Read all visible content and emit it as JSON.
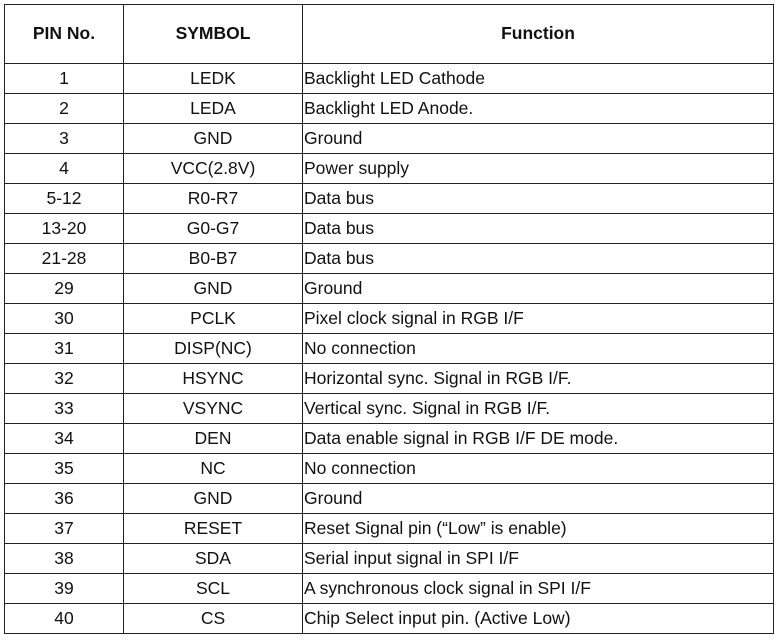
{
  "table": {
    "headers": [
      "PIN No.",
      "SYMBOL",
      "Function"
    ],
    "rows": [
      {
        "pin": "1",
        "symbol": "LEDK",
        "function": "Backlight LED Cathode"
      },
      {
        "pin": "2",
        "symbol": "LEDA",
        "function": "Backlight LED Anode."
      },
      {
        "pin": "3",
        "symbol": "GND",
        "function": "Ground"
      },
      {
        "pin": "4",
        "symbol": "VCC(2.8V)",
        "function": "Power supply"
      },
      {
        "pin": "5-12",
        "symbol": "R0-R7",
        "function": "Data bus"
      },
      {
        "pin": "13-20",
        "symbol": "G0-G7",
        "function": "Data bus"
      },
      {
        "pin": "21-28",
        "symbol": "B0-B7",
        "function": "Data bus"
      },
      {
        "pin": "29",
        "symbol": "GND",
        "function": "Ground"
      },
      {
        "pin": "30",
        "symbol": "PCLK",
        "function": "Pixel clock signal in RGB I/F"
      },
      {
        "pin": "31",
        "symbol": "DISP(NC)",
        "function": "No connection"
      },
      {
        "pin": "32",
        "symbol": "HSYNC",
        "function": "Horizontal sync. Signal in RGB I/F."
      },
      {
        "pin": "33",
        "symbol": "VSYNC",
        "function": "Vertical sync. Signal in RGB I/F."
      },
      {
        "pin": "34",
        "symbol": "DEN",
        "function": "Data enable signal in RGB I/F DE mode."
      },
      {
        "pin": "35",
        "symbol": "NC",
        "function": "No connection"
      },
      {
        "pin": "36",
        "symbol": "GND",
        "function": "Ground"
      },
      {
        "pin": "37",
        "symbol": "RESET",
        "function": "Reset Signal pin (“Low” is enable)"
      },
      {
        "pin": "38",
        "symbol": "SDA",
        "function": "Serial input signal in SPI I/F"
      },
      {
        "pin": "39",
        "symbol": "SCL",
        "function": "A synchronous clock signal in SPI I/F"
      },
      {
        "pin": "40",
        "symbol": "CS",
        "function": "Chip Select input pin.  (Active Low)"
      }
    ]
  }
}
